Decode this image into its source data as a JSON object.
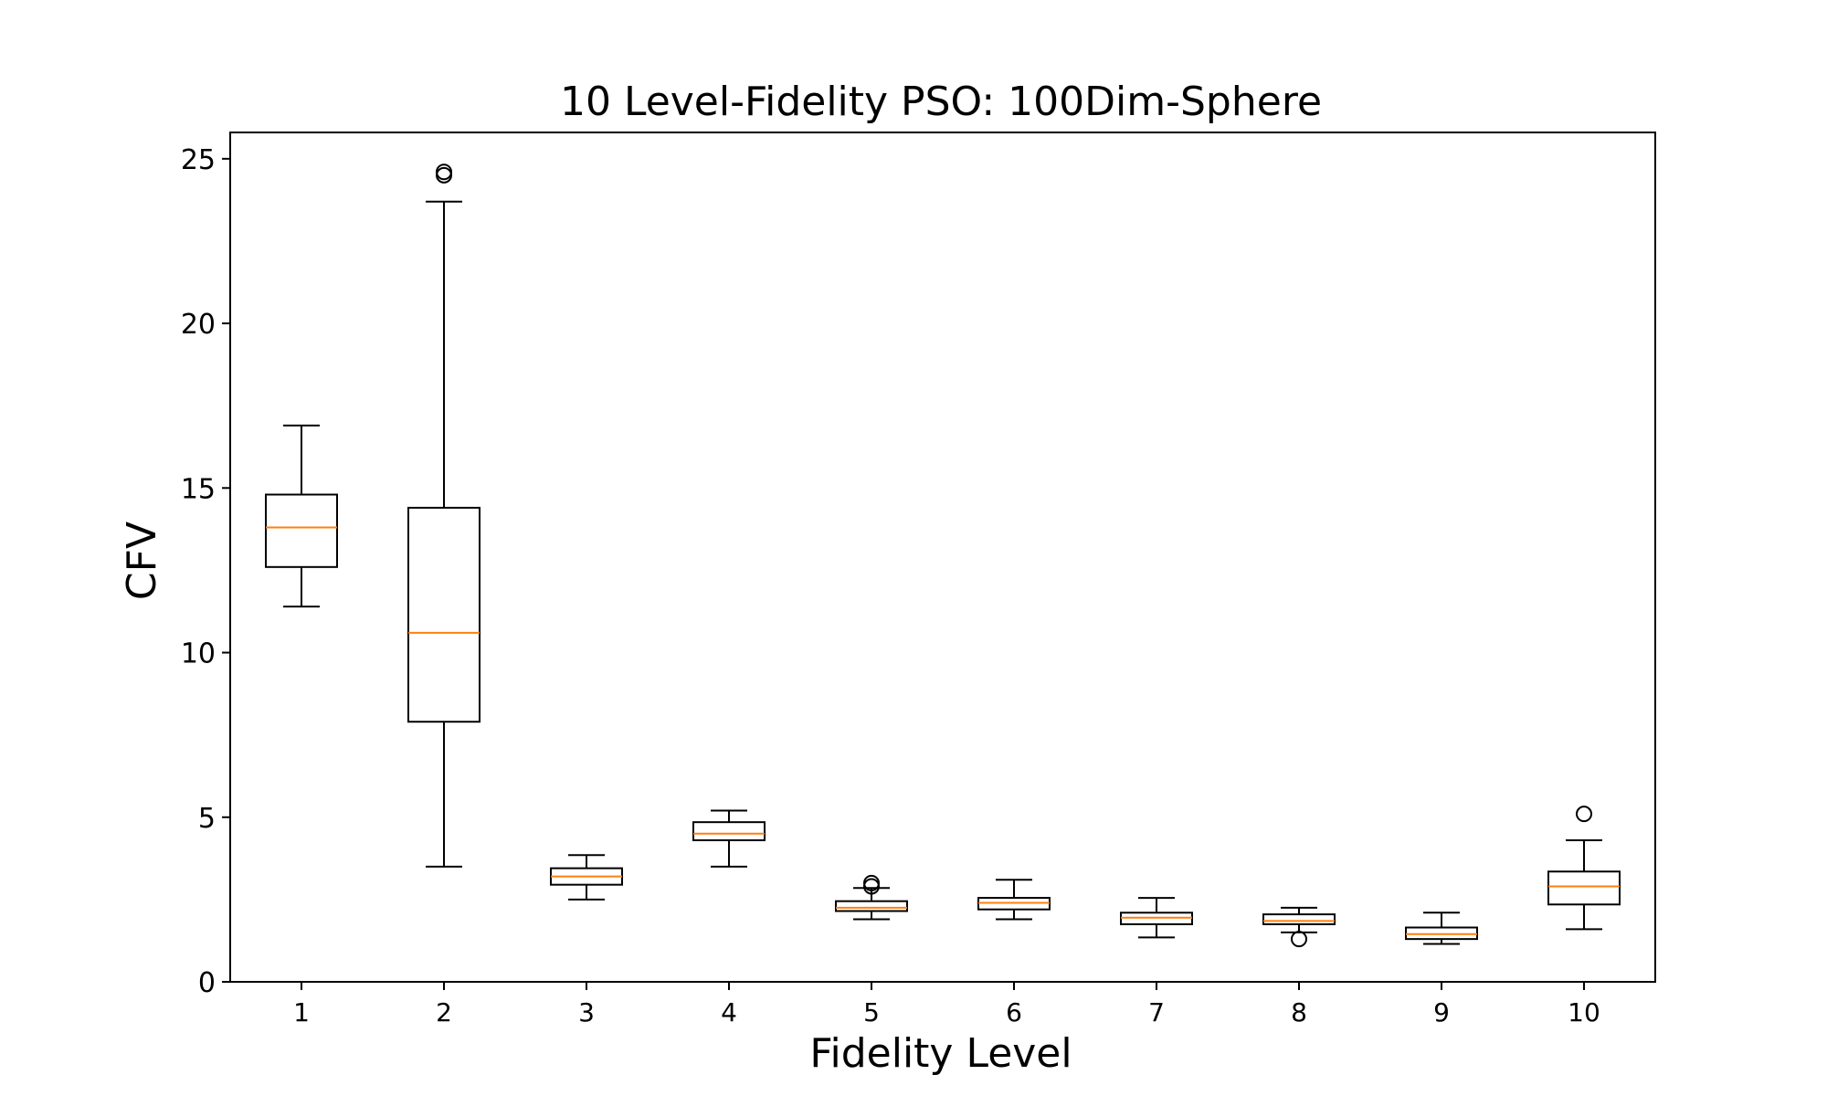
{
  "chart_data": {
    "type": "boxplot",
    "title": "10 Level-Fidelity PSO: 100Dim-Sphere",
    "xlabel": "Fidelity Level",
    "ylabel": "CFV",
    "categories": [
      "1",
      "2",
      "3",
      "4",
      "5",
      "6",
      "7",
      "8",
      "9",
      "10"
    ],
    "ylim": [
      0,
      25.8
    ],
    "yticks": [
      0,
      5,
      10,
      15,
      20,
      25
    ],
    "grid": false,
    "colors": {
      "box": "#000000",
      "median": "#ff7f0e",
      "background": "#ffffff"
    },
    "boxes": [
      {
        "label": "1",
        "whisker_low": 11.4,
        "q1": 12.6,
        "median": 13.8,
        "q3": 14.8,
        "whisker_high": 16.9,
        "outliers": []
      },
      {
        "label": "2",
        "whisker_low": 3.5,
        "q1": 7.9,
        "median": 10.6,
        "q3": 14.4,
        "whisker_high": 23.7,
        "outliers": [
          24.5,
          24.6
        ]
      },
      {
        "label": "3",
        "whisker_low": 2.5,
        "q1": 2.95,
        "median": 3.2,
        "q3": 3.45,
        "whisker_high": 3.85,
        "outliers": []
      },
      {
        "label": "4",
        "whisker_low": 3.5,
        "q1": 4.3,
        "median": 4.5,
        "q3": 4.85,
        "whisker_high": 5.2,
        "outliers": []
      },
      {
        "label": "5",
        "whisker_low": 1.9,
        "q1": 2.15,
        "median": 2.25,
        "q3": 2.45,
        "whisker_high": 2.85,
        "outliers": [
          2.9,
          3.0
        ]
      },
      {
        "label": "6",
        "whisker_low": 1.9,
        "q1": 2.2,
        "median": 2.4,
        "q3": 2.55,
        "whisker_high": 3.1,
        "outliers": []
      },
      {
        "label": "7",
        "whisker_low": 1.35,
        "q1": 1.75,
        "median": 1.95,
        "q3": 2.1,
        "whisker_high": 2.55,
        "outliers": []
      },
      {
        "label": "8",
        "whisker_low": 1.5,
        "q1": 1.75,
        "median": 1.85,
        "q3": 2.05,
        "whisker_high": 2.25,
        "outliers": [
          1.3
        ]
      },
      {
        "label": "9",
        "whisker_low": 1.15,
        "q1": 1.3,
        "median": 1.45,
        "q3": 1.65,
        "whisker_high": 2.1,
        "outliers": []
      },
      {
        "label": "10",
        "whisker_low": 1.6,
        "q1": 2.35,
        "median": 2.9,
        "q3": 3.35,
        "whisker_high": 4.3,
        "outliers": [
          5.1
        ]
      }
    ]
  }
}
